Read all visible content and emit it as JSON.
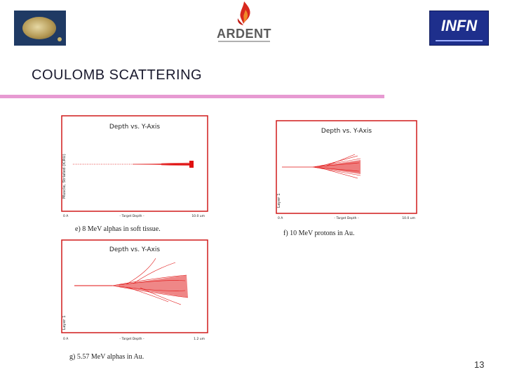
{
  "title": "COULOMB SCATTERING",
  "logos": {
    "ardent": "ARDENT",
    "infn": "INFN"
  },
  "colors": {
    "accent_rule": "#e79ad2",
    "plot_frame": "#d11a1a",
    "track": "#e01010",
    "infn_blue": "#1e2f8c"
  },
  "plots": [
    {
      "heading": "Depth vs. Y-Axis",
      "ylabel": "Muscle, Striated (ICRU)",
      "xtick_left": "0 A",
      "xtick_mid": "- Target Depth -",
      "xtick_right": "10.0 um",
      "caption": "e) 8 MeV alphas in soft tissue."
    },
    {
      "heading": "Depth vs. Y-Axis",
      "ylabel": "Layer 1",
      "xtick_left": "0 A",
      "xtick_mid": "- Target Depth -",
      "xtick_right": "10.0 um",
      "caption": "f) 10 MeV protons in Au."
    },
    {
      "heading": "Depth vs. Y-Axis",
      "ylabel": "Layer 1",
      "xtick_left": "0 A",
      "xtick_mid": "- Target Depth -",
      "xtick_right": "1.2 um",
      "caption": "g) 5.57 MeV alphas in Au."
    }
  ],
  "page_number": "13"
}
